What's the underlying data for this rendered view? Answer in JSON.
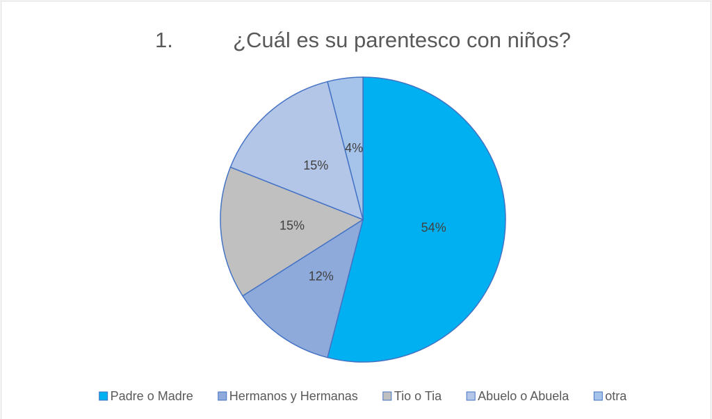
{
  "chart_data": {
    "type": "pie",
    "title": "1.          ¿Cuál es su parentesco con niños?",
    "categories": [
      "Padre o Madre",
      "Hermanos y Hermanas",
      "Tio o Tia",
      "Abuelo o Abuela",
      "otra"
    ],
    "values": [
      54,
      12,
      15,
      15,
      4
    ],
    "value_labels": [
      "54%",
      "12%",
      "15%",
      "15%",
      "4%"
    ],
    "colors": [
      "#00b0f0",
      "#8eaadb",
      "#c0c0c0",
      "#b4c6e7",
      "#a6c4ea"
    ],
    "legend": "bottom"
  }
}
